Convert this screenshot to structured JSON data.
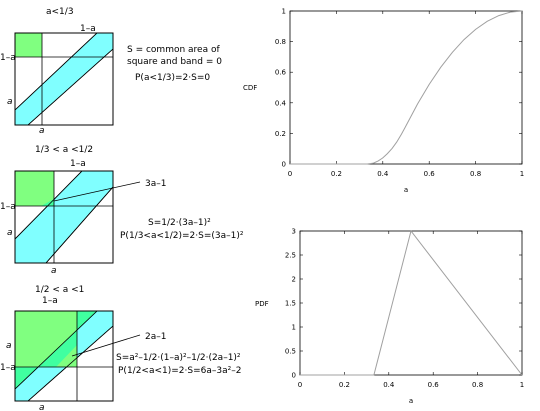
{
  "panel1": {
    "title": "a<1/3",
    "top_label": "1–a",
    "left_top_label": "1–a",
    "left_label": "a",
    "bottom_label": "a",
    "note1": "S = common area of",
    "note2": "square and band = 0",
    "prob": "P(a<1/3)=2·S=0"
  },
  "panel2": {
    "title": "1/3 < a <1/2",
    "top_label": "1–a",
    "left_top_label": "1–a",
    "left_label": "a",
    "bottom_label": "a",
    "callout": "3a–1",
    "area": "S=1/2·(3a–1)²",
    "prob": "P(1/3<a<1/2)=2·S=(3a–1)²"
  },
  "panel3": {
    "title": "1/2 < a <1",
    "top_label": "1–a",
    "left_top_label": "a",
    "left_label": "1–a",
    "bottom_label": "a",
    "callout": "2a–1",
    "area": "S=a²–1/2·(1–a)²–1/2·(2a–1)²",
    "prob": "P(1/2<a<1)=2·S=6a–3a²–2"
  },
  "colors": {
    "cyan": "#80ffff",
    "green": "#80ff80",
    "overlap": "#40ffa0",
    "curve": "#a0a0a0"
  },
  "chart_data": [
    {
      "type": "line",
      "ylabel": "CDF",
      "xlabel": "a",
      "xlim": [
        0,
        1
      ],
      "ylim": [
        0,
        1
      ],
      "xticks": [
        "0",
        "0.2",
        "0.4",
        "0.6",
        "0.8",
        "1"
      ],
      "yticks": [
        "0",
        "0.2",
        "0.4",
        "0.6",
        "0.8",
        "1"
      ],
      "x": [
        0,
        0.333,
        0.36,
        0.38,
        0.4,
        0.42,
        0.44,
        0.46,
        0.48,
        0.5,
        0.55,
        0.6,
        0.65,
        0.7,
        0.75,
        0.8,
        0.85,
        0.9,
        0.95,
        1.0
      ],
      "y": [
        0,
        0,
        0.006,
        0.02,
        0.04,
        0.068,
        0.102,
        0.143,
        0.194,
        0.25,
        0.393,
        0.52,
        0.633,
        0.73,
        0.813,
        0.88,
        0.933,
        0.97,
        0.993,
        1.0
      ]
    },
    {
      "type": "line",
      "ylabel": "PDF",
      "xlabel": "a",
      "xlim": [
        0,
        1
      ],
      "ylim": [
        0,
        3
      ],
      "xticks": [
        "0",
        "0.2",
        "0.4",
        "0.6",
        "0.8",
        "1"
      ],
      "yticks": [
        "0",
        "0.5",
        "1",
        "1.5",
        "2",
        "2.5",
        "3"
      ],
      "x": [
        0,
        0.333,
        0.5,
        1.0
      ],
      "y": [
        0,
        0,
        3,
        0
      ]
    }
  ]
}
